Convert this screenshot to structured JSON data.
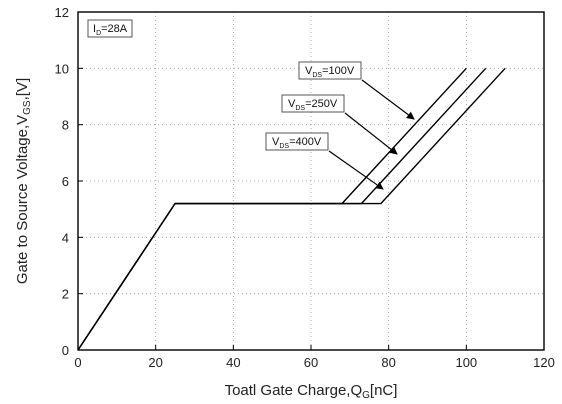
{
  "chart_data": {
    "type": "line",
    "xlabel": {
      "main": "Toatl Gate Charge,Q",
      "sub": "G",
      "unit": "[nC]"
    },
    "ylabel": {
      "main": "Gate to Source Voltage,V",
      "sub": "GS",
      "unit": ",[V]"
    },
    "xlim": [
      0,
      120
    ],
    "ylim": [
      0,
      12
    ],
    "x_ticks": [
      "0",
      "20",
      "40",
      "60",
      "80",
      "100",
      "120"
    ],
    "y_ticks": [
      "0",
      "2",
      "4",
      "6",
      "8",
      "10",
      "12"
    ],
    "grid": "dotted",
    "condition": {
      "main": "I",
      "sub": "D",
      "rest": "=28A"
    },
    "series": [
      {
        "name": "VDS=100V",
        "label": {
          "main": "V",
          "sub": "DS",
          "rest": "=100V"
        },
        "x": [
          0,
          25,
          68,
          100
        ],
        "y": [
          0,
          5.2,
          5.2,
          10
        ]
      },
      {
        "name": "VDS=250V",
        "label": {
          "main": "V",
          "sub": "DS",
          "rest": "=250V"
        },
        "x": [
          0,
          25,
          73,
          105
        ],
        "y": [
          0,
          5.2,
          5.2,
          10
        ]
      },
      {
        "name": "VDS=400V",
        "label": {
          "main": "V",
          "sub": "DS",
          "rest": "=400V"
        },
        "x": [
          0,
          25,
          78,
          110
        ],
        "y": [
          0,
          5.2,
          5.2,
          10
        ]
      }
    ]
  }
}
